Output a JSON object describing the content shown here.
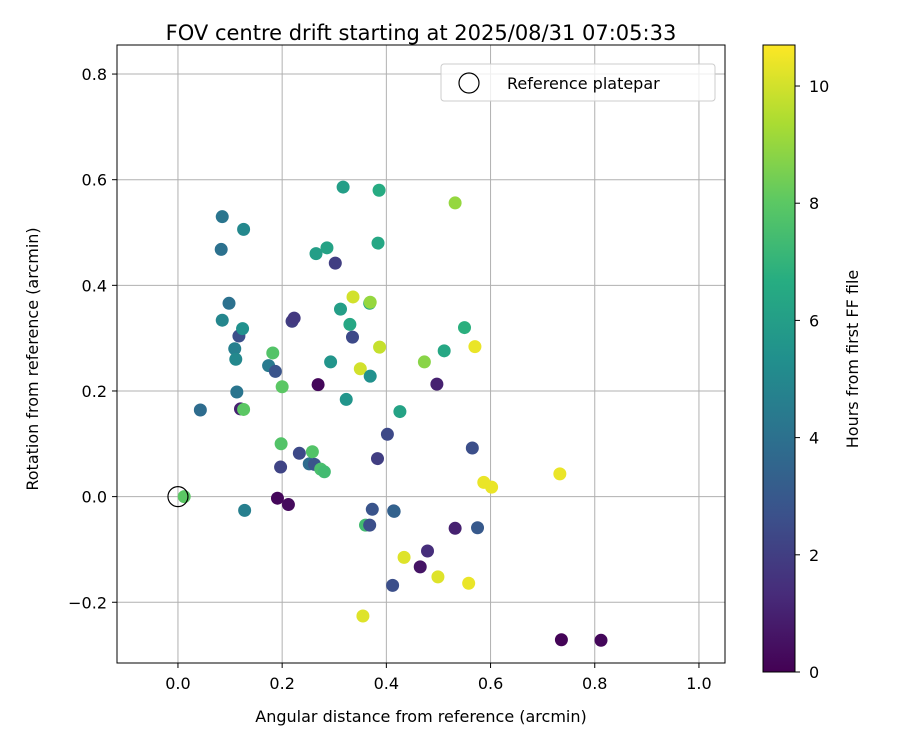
{
  "chart_data": {
    "type": "scatter",
    "title": "FOV centre drift starting at 2025/08/31 07:05:33",
    "xlabel": "Angular distance from reference (arcmin)",
    "ylabel": "Rotation from reference (arcmin)",
    "xlim": [
      -0.117,
      1.05
    ],
    "ylim": [
      -0.315,
      0.855
    ],
    "xticks": [
      0.0,
      0.2,
      0.4,
      0.6,
      0.8,
      1.0
    ],
    "xtick_labels": [
      "0.0",
      "0.2",
      "0.4",
      "0.6",
      "0.8",
      "1.0"
    ],
    "yticks": [
      -0.2,
      0.0,
      0.2,
      0.4,
      0.6,
      0.8
    ],
    "ytick_labels": [
      "−0.2",
      "0.0",
      "0.2",
      "0.4",
      "0.6",
      "0.8"
    ],
    "grid": true,
    "legend": {
      "position": "top-right",
      "label": "Reference platepar"
    },
    "reference_point": {
      "x": 0.0,
      "y": 0.0
    },
    "colorbar": {
      "label": "Hours from first FF file",
      "min": 0,
      "max": 10.7,
      "ticks": [
        0,
        2,
        4,
        6,
        8,
        10
      ],
      "tick_labels": [
        "0",
        "2",
        "4",
        "6",
        "8",
        "10"
      ],
      "colormap": "viridis"
    },
    "points": [
      {
        "x": 0.012,
        "y": 0.0,
        "h": 8.0
      },
      {
        "x": 0.043,
        "y": 0.164,
        "h": 3.8
      },
      {
        "x": 0.085,
        "y": 0.53,
        "h": 4.2
      },
      {
        "x": 0.083,
        "y": 0.468,
        "h": 4.0
      },
      {
        "x": 0.085,
        "y": 0.334,
        "h": 4.9
      },
      {
        "x": 0.098,
        "y": 0.366,
        "h": 4.0
      },
      {
        "x": 0.109,
        "y": 0.28,
        "h": 4.6
      },
      {
        "x": 0.111,
        "y": 0.26,
        "h": 5.0
      },
      {
        "x": 0.117,
        "y": 0.304,
        "h": 2.6
      },
      {
        "x": 0.113,
        "y": 0.198,
        "h": 4.2
      },
      {
        "x": 0.12,
        "y": 0.166,
        "h": 1.0
      },
      {
        "x": 0.126,
        "y": 0.506,
        "h": 5.0
      },
      {
        "x": 0.124,
        "y": 0.318,
        "h": 5.4
      },
      {
        "x": 0.126,
        "y": 0.165,
        "h": 8.0
      },
      {
        "x": 0.128,
        "y": -0.026,
        "h": 4.6
      },
      {
        "x": 0.174,
        "y": 0.248,
        "h": 4.4
      },
      {
        "x": 0.182,
        "y": 0.272,
        "h": 7.8
      },
      {
        "x": 0.187,
        "y": 0.237,
        "h": 2.8
      },
      {
        "x": 0.191,
        "y": -0.003,
        "h": 0.2
      },
      {
        "x": 0.197,
        "y": 0.056,
        "h": 2.2
      },
      {
        "x": 0.198,
        "y": 0.1,
        "h": 7.8
      },
      {
        "x": 0.2,
        "y": 0.208,
        "h": 8.0
      },
      {
        "x": 0.212,
        "y": -0.015,
        "h": 0.3
      },
      {
        "x": 0.219,
        "y": 0.332,
        "h": 2.0
      },
      {
        "x": 0.223,
        "y": 0.338,
        "h": 1.8
      },
      {
        "x": 0.233,
        "y": 0.082,
        "h": 2.4
      },
      {
        "x": 0.252,
        "y": 0.062,
        "h": 3.8
      },
      {
        "x": 0.258,
        "y": 0.085,
        "h": 7.8
      },
      {
        "x": 0.262,
        "y": 0.061,
        "h": 2.8
      },
      {
        "x": 0.265,
        "y": 0.46,
        "h": 6.0
      },
      {
        "x": 0.269,
        "y": 0.212,
        "h": 0.2
      },
      {
        "x": 0.274,
        "y": 0.052,
        "h": 7.6
      },
      {
        "x": 0.281,
        "y": 0.047,
        "h": 7.4
      },
      {
        "x": 0.286,
        "y": 0.471,
        "h": 6.2
      },
      {
        "x": 0.293,
        "y": 0.255,
        "h": 5.6
      },
      {
        "x": 0.302,
        "y": 0.442,
        "h": 2.0
      },
      {
        "x": 0.312,
        "y": 0.355,
        "h": 6.0
      },
      {
        "x": 0.317,
        "y": 0.586,
        "h": 6.0
      },
      {
        "x": 0.323,
        "y": 0.184,
        "h": 5.6
      },
      {
        "x": 0.33,
        "y": 0.326,
        "h": 6.4
      },
      {
        "x": 0.335,
        "y": 0.302,
        "h": 2.4
      },
      {
        "x": 0.336,
        "y": 0.378,
        "h": 10.0
      },
      {
        "x": 0.35,
        "y": 0.242,
        "h": 10.0
      },
      {
        "x": 0.355,
        "y": -0.226,
        "h": 10.2
      },
      {
        "x": 0.36,
        "y": -0.054,
        "h": 7.4
      },
      {
        "x": 0.368,
        "y": 0.366,
        "h": 6.4
      },
      {
        "x": 0.369,
        "y": 0.368,
        "h": 9.0
      },
      {
        "x": 0.368,
        "y": -0.054,
        "h": 2.6
      },
      {
        "x": 0.369,
        "y": 0.228,
        "h": 5.4
      },
      {
        "x": 0.373,
        "y": -0.024,
        "h": 2.8
      },
      {
        "x": 0.383,
        "y": 0.072,
        "h": 2.0
      },
      {
        "x": 0.384,
        "y": 0.48,
        "h": 6.4
      },
      {
        "x": 0.386,
        "y": 0.58,
        "h": 6.6
      },
      {
        "x": 0.387,
        "y": 0.283,
        "h": 9.8
      },
      {
        "x": 0.402,
        "y": 0.118,
        "h": 2.4
      },
      {
        "x": 0.412,
        "y": -0.168,
        "h": 2.6
      },
      {
        "x": 0.414,
        "y": -0.027,
        "h": 3.0
      },
      {
        "x": 0.415,
        "y": -0.028,
        "h": 3.4
      },
      {
        "x": 0.426,
        "y": 0.161,
        "h": 6.2
      },
      {
        "x": 0.434,
        "y": -0.115,
        "h": 10.2
      },
      {
        "x": 0.465,
        "y": -0.133,
        "h": 0.6
      },
      {
        "x": 0.473,
        "y": 0.255,
        "h": 8.8
      },
      {
        "x": 0.479,
        "y": -0.103,
        "h": 1.4
      },
      {
        "x": 0.497,
        "y": 0.213,
        "h": 1.0
      },
      {
        "x": 0.499,
        "y": -0.152,
        "h": 10.2
      },
      {
        "x": 0.511,
        "y": 0.276,
        "h": 6.4
      },
      {
        "x": 0.532,
        "y": 0.556,
        "h": 9.0
      },
      {
        "x": 0.532,
        "y": -0.06,
        "h": 1.0
      },
      {
        "x": 0.55,
        "y": 0.32,
        "h": 6.8
      },
      {
        "x": 0.558,
        "y": -0.164,
        "h": 10.4
      },
      {
        "x": 0.565,
        "y": 0.092,
        "h": 2.6
      },
      {
        "x": 0.57,
        "y": 0.284,
        "h": 10.4
      },
      {
        "x": 0.575,
        "y": -0.059,
        "h": 3.0
      },
      {
        "x": 0.587,
        "y": 0.027,
        "h": 10.4
      },
      {
        "x": 0.602,
        "y": 0.018,
        "h": 10.4
      },
      {
        "x": 0.733,
        "y": 0.043,
        "h": 10.4
      },
      {
        "x": 0.736,
        "y": -0.271,
        "h": 0.1
      },
      {
        "x": 0.812,
        "y": -0.272,
        "h": 0.2
      }
    ]
  }
}
